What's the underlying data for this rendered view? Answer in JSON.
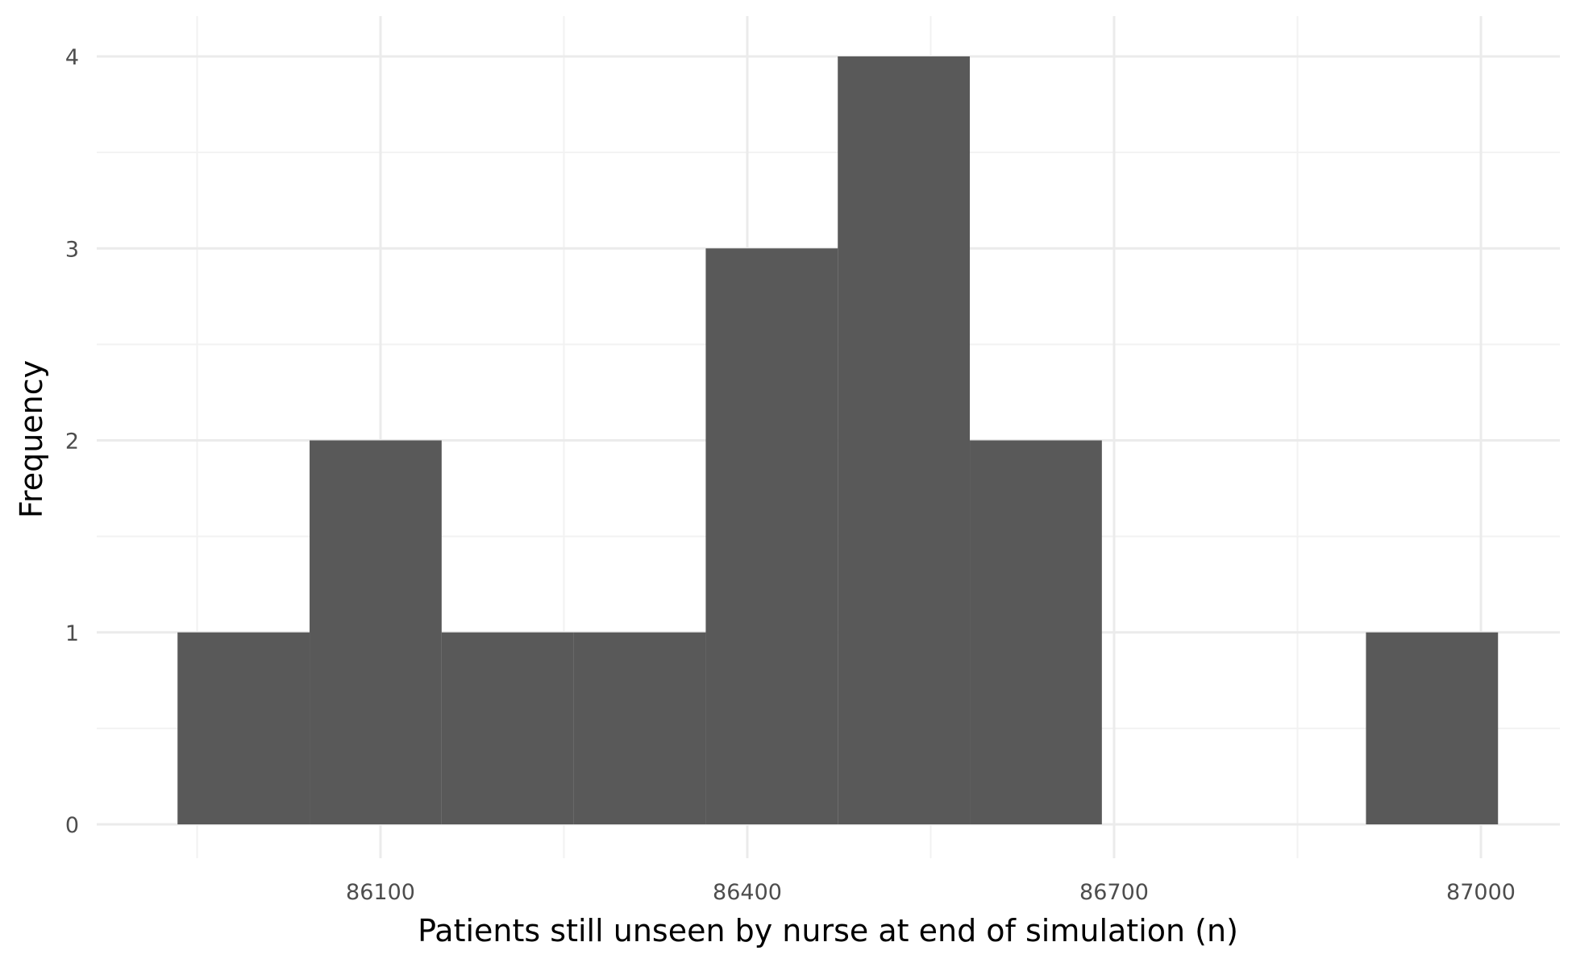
{
  "chart_data": {
    "type": "bar",
    "subtype": "histogram",
    "title": "",
    "xlabel": "Patients still unseen by nurse at end of simulation (n)",
    "ylabel": "Frequency",
    "bin_width": 108,
    "bins": [
      {
        "start": 85934,
        "end": 86042,
        "count": 1
      },
      {
        "start": 86042,
        "end": 86150,
        "count": 2
      },
      {
        "start": 86150,
        "end": 86258,
        "count": 1
      },
      {
        "start": 86258,
        "end": 86366,
        "count": 1
      },
      {
        "start": 86366,
        "end": 86474,
        "count": 3
      },
      {
        "start": 86474,
        "end": 86582,
        "count": 4
      },
      {
        "start": 86582,
        "end": 86690,
        "count": 2
      },
      {
        "start": 86690,
        "end": 86798,
        "count": 0
      },
      {
        "start": 86798,
        "end": 86906,
        "count": 0
      },
      {
        "start": 86906,
        "end": 87014,
        "count": 1
      }
    ],
    "x_ticks": [
      86100,
      86400,
      86700,
      87000
    ],
    "x_minor_ticks": [
      85950,
      86250,
      86550,
      86850
    ],
    "y_ticks": [
      0,
      1,
      2,
      3,
      4
    ],
    "y_minor_ticks": [
      0.5,
      1.5,
      2.5,
      3.5
    ],
    "xlim": [
      85880,
      87068
    ],
    "ylim": [
      0,
      4.2
    ],
    "grid": true,
    "legend": "none",
    "colors": {
      "bar": "#595959",
      "grid_major": "#ebebeb",
      "grid_minor": "#f2f2f2",
      "tick_text": "#4d4d4d",
      "title_text": "#000000"
    }
  }
}
